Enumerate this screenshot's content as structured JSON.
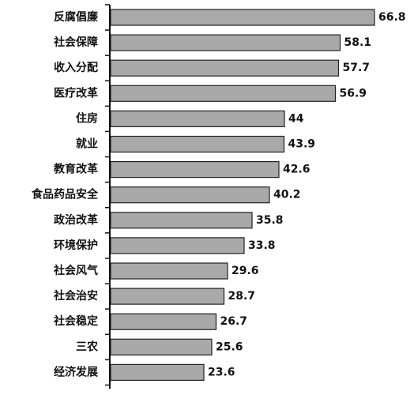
{
  "chart_data": {
    "type": "bar",
    "orientation": "horizontal",
    "title": "",
    "xlabel": "",
    "ylabel": "",
    "categories": [
      "反腐倡廉",
      "社会保障",
      "收入分配",
      "医疗改革",
      "住房",
      "就业",
      "教育改革",
      "食品药品安全",
      "政治改革",
      "环境保护",
      "社会风气",
      "社会治安",
      "社会稳定",
      "三农",
      "经济发展"
    ],
    "values": [
      "66.8",
      "58.1",
      "57.7",
      "56.9",
      "44",
      "43.9",
      "42.6",
      "40.2",
      "35.8",
      "33.8",
      "29.6",
      "28.7",
      "26.7",
      "25.6",
      "23.6"
    ],
    "xlim": [
      0,
      70
    ],
    "grid": false,
    "legend": "none",
    "bar_color": "#a9a9a9"
  }
}
